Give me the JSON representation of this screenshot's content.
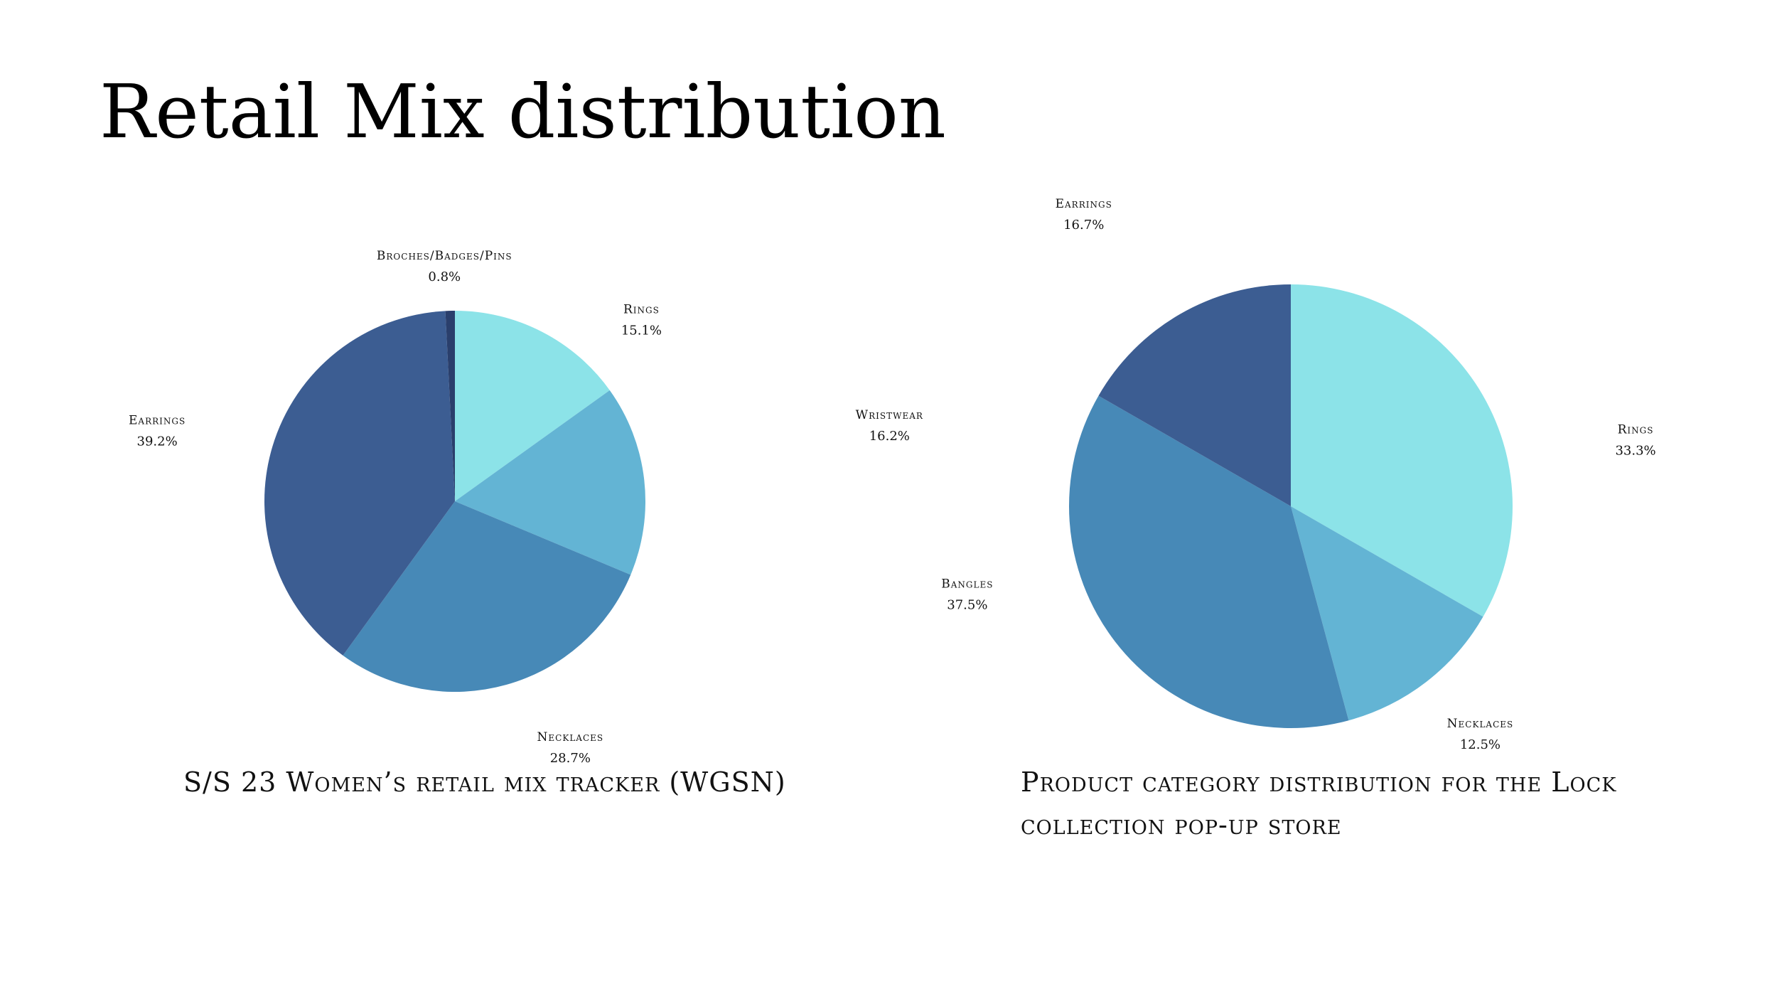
{
  "page": {
    "title": "Retail Mix distribution"
  },
  "chart_data": [
    {
      "type": "pie",
      "caption": "S/S  23 Women’s retail mix tracker (WGSN)",
      "slices": [
        {
          "label": "Rings",
          "value": 15.1,
          "display": "15.1%",
          "color": "#8ce3e8"
        },
        {
          "label": "Wristwear",
          "value": 16.2,
          "display": "16.2%",
          "color": "#63b4d4"
        },
        {
          "label": "Necklaces",
          "value": 28.7,
          "display": "28.7%",
          "color": "#4789b7"
        },
        {
          "label": "Earrings",
          "value": 39.2,
          "display": "39.2%",
          "color": "#3c5d92"
        },
        {
          "label": "Broches/Badges/Pins",
          "value": 0.8,
          "display": "0.8%",
          "color": "#2a3f6c"
        }
      ]
    },
    {
      "type": "pie",
      "caption": "Product  category distribution for the Lock collection pop-up store",
      "slices": [
        {
          "label": "Rings",
          "value": 33.3,
          "display": "33.3%",
          "color": "#8ce3e8"
        },
        {
          "label": "Necklaces",
          "value": 12.5,
          "display": "12.5%",
          "color": "#63b4d4"
        },
        {
          "label": "Bangles",
          "value": 37.5,
          "display": "37.5%",
          "color": "#4789b7"
        },
        {
          "label": "Earrings",
          "value": 16.7,
          "display": "16.7%",
          "color": "#3c5d92"
        }
      ]
    }
  ]
}
